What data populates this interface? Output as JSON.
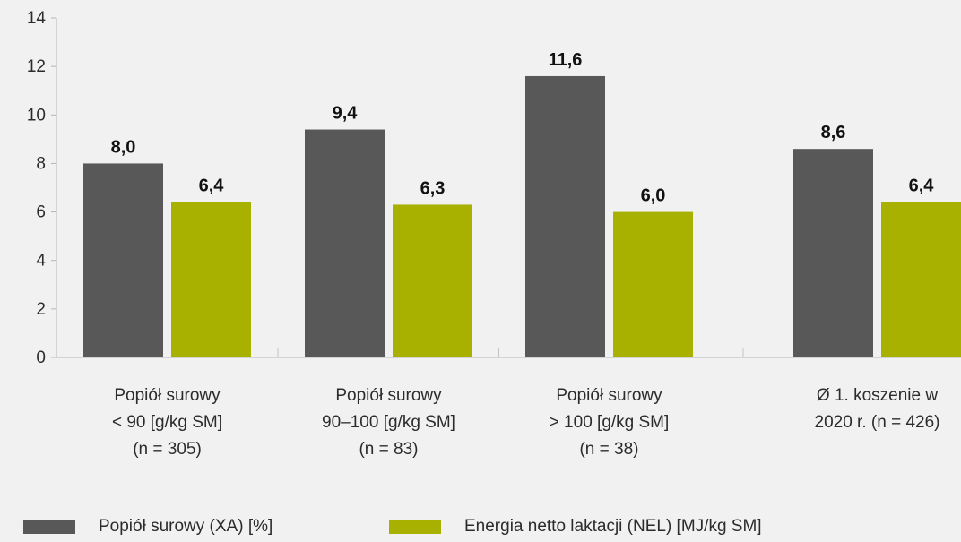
{
  "chart_data": {
    "type": "bar",
    "categories": [
      [
        "Popiół surowy",
        "< 90 [g/kg SM]",
        "(n = 305)"
      ],
      [
        "Popiół surowy",
        "90–100 [g/kg SM]",
        "(n = 83)"
      ],
      [
        "Popiół surowy",
        "> 100 [g/kg SM]",
        "(n = 38)"
      ],
      [
        "Ø 1. koszenie w",
        "2020 r. (n = 426)"
      ]
    ],
    "series": [
      {
        "name": "Popiół surowy (XA) [%]",
        "values": [
          8.0,
          9.4,
          11.6,
          8.6
        ],
        "labels": [
          "8,0",
          "9,4",
          "11,6",
          "8,6"
        ],
        "color": "#575857"
      },
      {
        "name": "Energia netto laktacji (NEL) [MJ/kg SM]",
        "values": [
          6.4,
          6.3,
          6.0,
          6.4
        ],
        "labels": [
          "6,4",
          "6,3",
          "6,0",
          "6,4"
        ],
        "color": "#a8b000"
      }
    ],
    "ylim": [
      0,
      14
    ],
    "yticks": [
      0,
      2,
      4,
      6,
      8,
      10,
      12,
      14
    ],
    "grid": false,
    "legend_position": "bottom"
  }
}
